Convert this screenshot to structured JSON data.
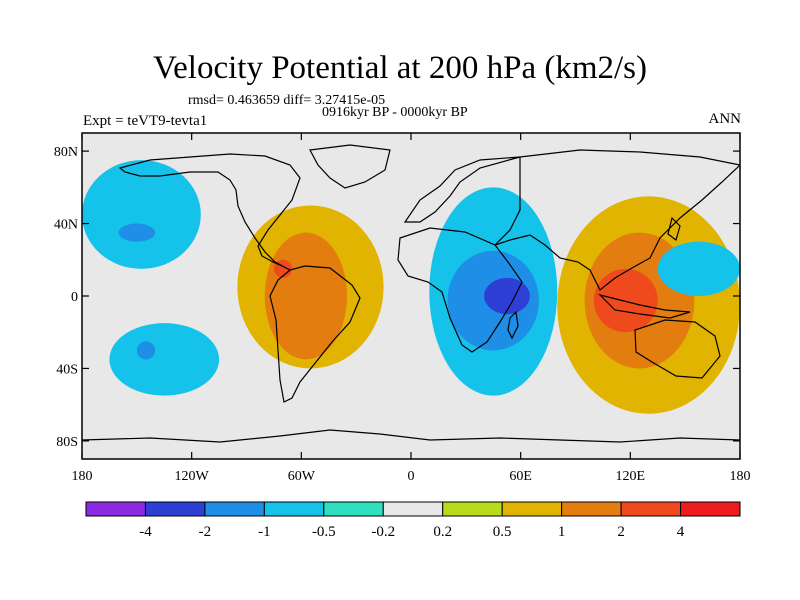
{
  "chart_data": {
    "type": "heatmap",
    "title": "Velocity Potential at 200 hPa (km2/s)",
    "subtitle": "rmsd= 0.463659  diff= 3.27415e-05",
    "center_label": "0916kyr BP - 0000kyr BP",
    "left_label": "Expt = teVT9-tevta1",
    "right_label": "ANN",
    "x_axis": {
      "range": [
        -180,
        180
      ],
      "ticks": [
        -180,
        -120,
        -60,
        0,
        60,
        120,
        180
      ],
      "tick_labels": [
        "180",
        "120W",
        "60W",
        "0",
        "60E",
        "120E",
        "180"
      ]
    },
    "y_axis": {
      "range": [
        -90,
        90
      ],
      "ticks": [
        80,
        40,
        0,
        -40,
        -80
      ],
      "tick_labels": [
        "80N",
        "40N",
        "0",
        "40S",
        "80S"
      ]
    },
    "colorbar": {
      "levels": [
        -4,
        -2,
        -1,
        -0.5,
        -0.2,
        0.2,
        0.5,
        1,
        2,
        4
      ],
      "labels": [
        "-4",
        "-2",
        "-1",
        "-0.5",
        "-0.2",
        "0.2",
        "0.5",
        "1",
        "2",
        "4"
      ],
      "colors": [
        "#8a2be2",
        "#2e3fd6",
        "#1e8ee6",
        "#14c2ea",
        "#2fe0c0",
        "#e8e8e8",
        "#b9dc1a",
        "#e0b400",
        "#e37d10",
        "#ef4a1e",
        "#ee1c1c"
      ]
    },
    "regions": [
      {
        "name": "north-pacific-negative",
        "level": -0.5,
        "lon": [
          -180,
          -115
        ],
        "lat": [
          15,
          75
        ]
      },
      {
        "name": "north-pacific-core",
        "level": -1,
        "lon": [
          -160,
          -140
        ],
        "lat": [
          30,
          40
        ]
      },
      {
        "name": "south-pacific-negative",
        "level": -0.5,
        "lon": [
          -165,
          -105
        ],
        "lat": [
          -55,
          -15
        ]
      },
      {
        "name": "south-pacific-core",
        "level": -1,
        "lon": [
          -150,
          -140
        ],
        "lat": [
          -35,
          -25
        ]
      },
      {
        "name": "americas-positive",
        "level": 0.5,
        "lon": [
          -95,
          -15
        ],
        "lat": [
          -40,
          50
        ]
      },
      {
        "name": "americas-core",
        "level": 1,
        "lon": [
          -80,
          -35
        ],
        "lat": [
          -35,
          35
        ]
      },
      {
        "name": "americas-peak",
        "level": 2,
        "lon": [
          -75,
          -65
        ],
        "lat": [
          10,
          20
        ]
      },
      {
        "name": "africa-negative",
        "level": -0.5,
        "lon": [
          10,
          80
        ],
        "lat": [
          -55,
          60
        ]
      },
      {
        "name": "africa-core",
        "level": -1,
        "lon": [
          20,
          70
        ],
        "lat": [
          -30,
          25
        ]
      },
      {
        "name": "africa-peak",
        "level": -2,
        "lon": [
          40,
          65
        ],
        "lat": [
          -10,
          10
        ]
      },
      {
        "name": "asia-positive",
        "level": 0.5,
        "lon": [
          80,
          180
        ],
        "lat": [
          -65,
          55
        ]
      },
      {
        "name": "asia-core",
        "level": 1,
        "lon": [
          95,
          155
        ],
        "lat": [
          -40,
          35
        ]
      },
      {
        "name": "asia-peak",
        "level": 2,
        "lon": [
          100,
          135
        ],
        "lat": [
          -20,
          15
        ]
      },
      {
        "name": "west-pacific-negative",
        "level": -0.5,
        "lon": [
          135,
          180
        ],
        "lat": [
          0,
          30
        ]
      }
    ]
  }
}
